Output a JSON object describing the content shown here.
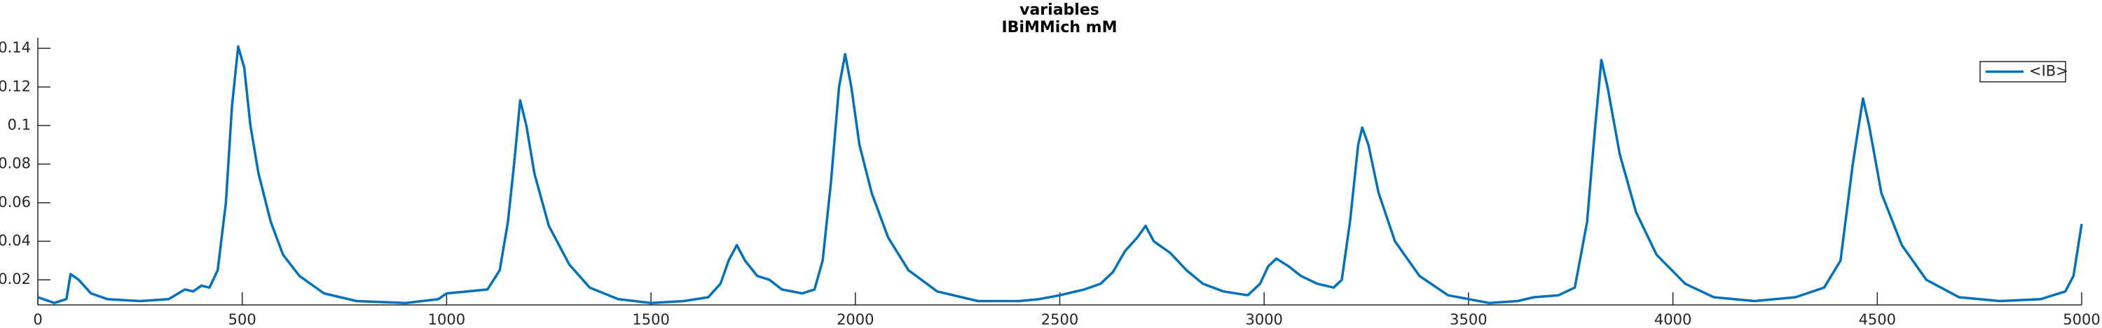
{
  "chart_data": {
    "type": "line",
    "title": "variables",
    "subtitle": "IBiMMich mM",
    "x": [
      0,
      40,
      70,
      80,
      100,
      130,
      170,
      250,
      320,
      360,
      380,
      400,
      420,
      440,
      460,
      475,
      490,
      505,
      520,
      540,
      570,
      600,
      640,
      700,
      780,
      900,
      980,
      1000,
      1050,
      1100,
      1130,
      1150,
      1165,
      1180,
      1195,
      1215,
      1250,
      1300,
      1350,
      1420,
      1500,
      1580,
      1640,
      1670,
      1690,
      1710,
      1730,
      1760,
      1790,
      1820,
      1870,
      1900,
      1920,
      1940,
      1960,
      1975,
      1990,
      2010,
      2040,
      2080,
      2130,
      2200,
      2300,
      2400,
      2450,
      2500,
      2560,
      2600,
      2630,
      2660,
      2690,
      2710,
      2730,
      2770,
      2810,
      2850,
      2900,
      2960,
      2990,
      3010,
      3030,
      3060,
      3090,
      3130,
      3170,
      3190,
      3210,
      3230,
      3240,
      3255,
      3280,
      3320,
      3380,
      3450,
      3550,
      3620,
      3660,
      3720,
      3760,
      3790,
      3810,
      3825,
      3840,
      3870,
      3910,
      3960,
      4030,
      4100,
      4200,
      4300,
      4370,
      4410,
      4440,
      4465,
      4480,
      4510,
      4560,
      4620,
      4700,
      4800,
      4900,
      4960,
      4980,
      5000
    ],
    "series": [
      {
        "name": "<IB>",
        "color": "#0072bd",
        "values": [
          0.011,
          0.008,
          0.01,
          0.023,
          0.02,
          0.013,
          0.01,
          0.009,
          0.01,
          0.015,
          0.014,
          0.017,
          0.016,
          0.025,
          0.06,
          0.11,
          0.141,
          0.13,
          0.1,
          0.075,
          0.05,
          0.033,
          0.022,
          0.013,
          0.009,
          0.008,
          0.01,
          0.013,
          0.014,
          0.015,
          0.025,
          0.05,
          0.08,
          0.113,
          0.1,
          0.075,
          0.048,
          0.028,
          0.016,
          0.01,
          0.008,
          0.009,
          0.011,
          0.018,
          0.03,
          0.038,
          0.03,
          0.022,
          0.02,
          0.015,
          0.013,
          0.015,
          0.03,
          0.07,
          0.12,
          0.137,
          0.12,
          0.09,
          0.065,
          0.042,
          0.025,
          0.014,
          0.009,
          0.009,
          0.01,
          0.012,
          0.015,
          0.018,
          0.024,
          0.035,
          0.042,
          0.048,
          0.04,
          0.034,
          0.025,
          0.018,
          0.014,
          0.012,
          0.018,
          0.027,
          0.031,
          0.027,
          0.022,
          0.018,
          0.016,
          0.02,
          0.05,
          0.09,
          0.099,
          0.09,
          0.065,
          0.04,
          0.022,
          0.012,
          0.008,
          0.009,
          0.011,
          0.012,
          0.016,
          0.05,
          0.1,
          0.134,
          0.12,
          0.085,
          0.055,
          0.033,
          0.018,
          0.011,
          0.009,
          0.011,
          0.016,
          0.03,
          0.08,
          0.114,
          0.1,
          0.065,
          0.038,
          0.02,
          0.011,
          0.009,
          0.01,
          0.014,
          0.022,
          0.049
        ]
      }
    ],
    "xlim": [
      0,
      5000
    ],
    "xticks": [
      0,
      500,
      1000,
      1500,
      2000,
      2500,
      3000,
      3500,
      4000,
      4500,
      5000
    ],
    "ylim": [
      0.007,
      0.1455
    ],
    "yticks": [
      0.02,
      0.04,
      0.06,
      0.08,
      0.1,
      0.12,
      0.14
    ],
    "legend": "top-right"
  }
}
